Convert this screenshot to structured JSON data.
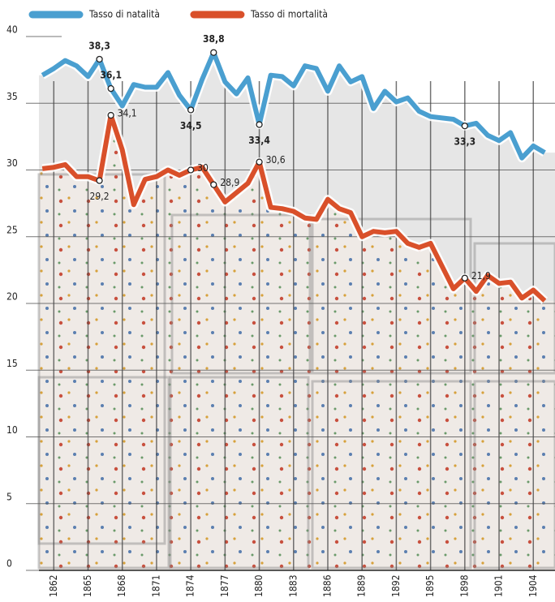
{
  "chart_data": {
    "type": "line",
    "x": [
      1861,
      1862,
      1863,
      1864,
      1865,
      1866,
      1867,
      1868,
      1869,
      1870,
      1871,
      1872,
      1873,
      1874,
      1875,
      1876,
      1877,
      1878,
      1879,
      1880,
      1881,
      1882,
      1883,
      1884,
      1885,
      1886,
      1887,
      1888,
      1889,
      1890,
      1891,
      1892,
      1893,
      1894,
      1895,
      1896,
      1897,
      1898,
      1899,
      1900,
      1901,
      1902,
      1903,
      1904,
      1905
    ],
    "series": [
      {
        "name": "Tasso di natalità",
        "color": "#4a9fd0",
        "values": [
          37.1,
          37.6,
          38.2,
          37.8,
          37.0,
          38.3,
          36.1,
          34.8,
          36.4,
          36.2,
          36.2,
          37.3,
          35.6,
          34.5,
          36.8,
          38.8,
          36.6,
          35.7,
          36.9,
          33.4,
          37.1,
          37.0,
          36.3,
          37.8,
          37.6,
          35.9,
          37.8,
          36.6,
          37.0,
          34.6,
          35.9,
          35.1,
          35.4,
          34.4,
          34.0,
          33.9,
          33.8,
          33.3,
          33.5,
          32.6,
          32.2,
          32.8,
          30.9,
          31.8,
          31.3
        ],
        "value_labels": [
          null,
          null,
          null,
          null,
          null,
          "38,3",
          "36,1",
          null,
          null,
          null,
          null,
          null,
          null,
          "34,5",
          null,
          "38,8",
          null,
          null,
          null,
          "33,4",
          null,
          null,
          null,
          null,
          null,
          null,
          null,
          null,
          null,
          null,
          null,
          null,
          null,
          null,
          null,
          null,
          null,
          "33,3",
          null,
          null,
          null,
          null,
          null,
          null,
          null
        ]
      },
      {
        "name": "Tasso di mortalità",
        "color": "#d9502a",
        "values": [
          30.1,
          30.2,
          30.4,
          29.5,
          29.5,
          29.2,
          34.1,
          31.5,
          27.4,
          29.3,
          29.5,
          30.0,
          29.6,
          30.0,
          30.2,
          28.9,
          27.6,
          28.3,
          29.0,
          30.6,
          27.2,
          27.1,
          26.9,
          26.4,
          26.3,
          27.8,
          27.1,
          26.8,
          25.0,
          25.4,
          25.3,
          25.4,
          24.5,
          24.2,
          24.5,
          22.8,
          21.1,
          21.9,
          20.9,
          22.1,
          21.5,
          21.6,
          20.4,
          21.0,
          20.2
        ],
        "value_labels": [
          null,
          null,
          null,
          null,
          null,
          "29,2",
          "34,1",
          null,
          null,
          null,
          null,
          null,
          null,
          "30",
          null,
          "28,9",
          null,
          null,
          null,
          "30,6",
          null,
          null,
          null,
          null,
          null,
          null,
          null,
          null,
          null,
          null,
          null,
          null,
          null,
          null,
          null,
          null,
          null,
          "21,9",
          null,
          null,
          null,
          null,
          null,
          null,
          null
        ]
      }
    ],
    "xlim": [
      1860.7,
      1905.9
    ],
    "xticks": [
      1862,
      1865,
      1868,
      1871,
      1874,
      1877,
      1880,
      1883,
      1886,
      1889,
      1892,
      1895,
      1898,
      1901,
      1904
    ],
    "ylim": [
      0,
      40
    ],
    "yticks": [
      0,
      5,
      10,
      15,
      20,
      25,
      30,
      35,
      40
    ],
    "grid": true
  }
}
